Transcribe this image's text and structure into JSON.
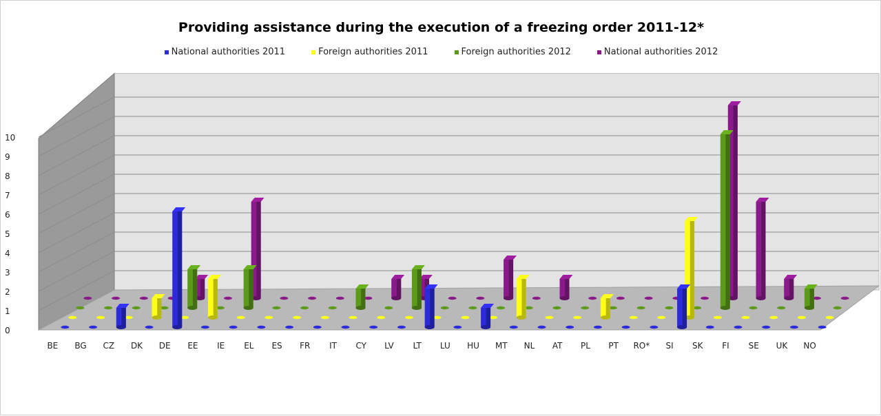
{
  "chart_data": {
    "type": "bar",
    "title": "Providing assistance during the execution of a freezing order 2011-12*",
    "categories": [
      "BE",
      "BG",
      "CZ",
      "DK",
      "DE",
      "EE",
      "IE",
      "EL",
      "ES",
      "FR",
      "IT",
      "CY",
      "LV",
      "LT",
      "LU",
      "HU",
      "MT",
      "NL",
      "AT",
      "PL",
      "PT",
      "RO*",
      "SI",
      "SK",
      "FI",
      "SE",
      "UK",
      "NO"
    ],
    "series": [
      {
        "name": "National authorities 2011",
        "color": "#2b2bd9",
        "values": [
          0,
          0,
          1,
          0,
          6,
          0,
          0,
          0,
          0,
          0,
          0,
          0,
          0,
          2,
          0,
          1,
          0,
          0,
          0,
          0,
          0,
          0,
          2,
          0,
          0,
          0,
          0,
          0
        ]
      },
      {
        "name": "Foreign authorities 2011",
        "color": "#ffff1a",
        "values": [
          0,
          0,
          0,
          1,
          0,
          2,
          0,
          0,
          0,
          0,
          0,
          0,
          0,
          0,
          0,
          0,
          2,
          0,
          0,
          1,
          0,
          0,
          5,
          0,
          0,
          0,
          0,
          0
        ]
      },
      {
        "name": "Foreign authorities 2012",
        "color": "#5c9a1a",
        "values": [
          0,
          0,
          0,
          0,
          2,
          0,
          2,
          0,
          0,
          0,
          1,
          0,
          2,
          0,
          0,
          0,
          0,
          0,
          0,
          0,
          0,
          0,
          0,
          9,
          0,
          0,
          1,
          0
        ]
      },
      {
        "name": "National authorities 2012",
        "color": "#8a1a8a",
        "values": [
          0,
          0,
          0,
          0,
          1,
          0,
          5,
          0,
          0,
          0,
          0,
          1,
          1,
          0,
          0,
          2,
          0,
          1,
          0,
          0,
          0,
          0,
          0,
          10,
          5,
          1,
          0,
          0
        ]
      }
    ],
    "y_ticks": [
      "0",
      "1",
      "2",
      "3",
      "4",
      "5",
      "6",
      "7",
      "8",
      "9",
      "10"
    ],
    "ylim": [
      0,
      10
    ],
    "grid": true,
    "legend_position": "top",
    "style": "3d-column"
  }
}
